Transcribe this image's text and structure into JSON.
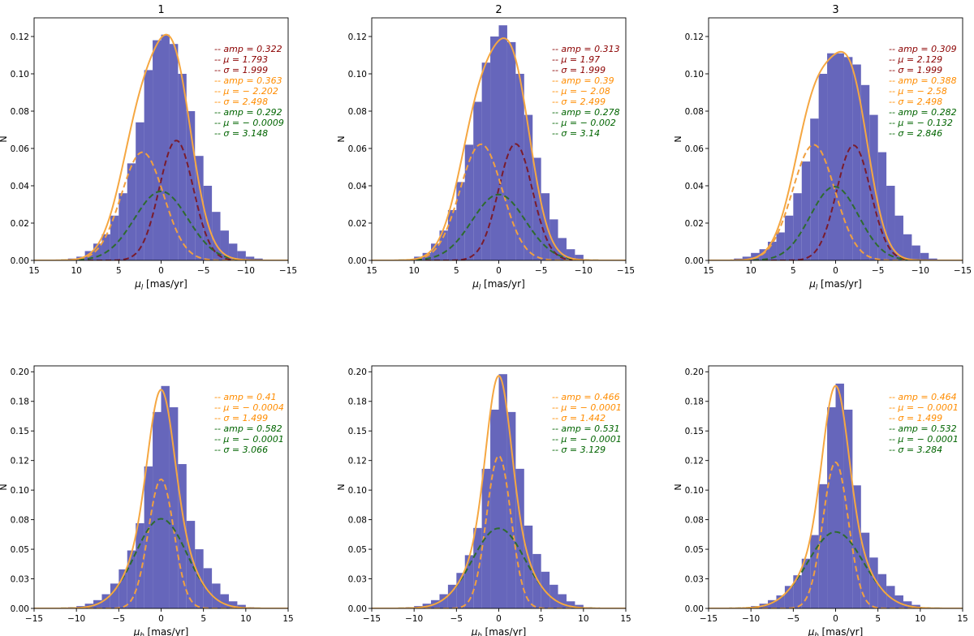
{
  "figure": {
    "ylabel": "N"
  },
  "colors": {
    "hist": "#6666bb",
    "total": "#f5a742",
    "comp_red": "#7a1c2c",
    "comp_orange": "#f0a040",
    "comp_green": "#2e6b2e",
    "label_red": "#8b0000",
    "label_orange": "#ff8c00",
    "label_green": "#006400"
  },
  "chart_data": [
    {
      "type": "bar",
      "title": "1",
      "xlabel_sym": "μ",
      "xlabel_sub": "l",
      "xlabel_rest": " [mas/yr]",
      "ylabel": "N",
      "xlim": [
        15,
        -15
      ],
      "ylim": [
        0,
        0.13
      ],
      "xticks": [
        15,
        10,
        5,
        0,
        -5,
        -10,
        -15
      ],
      "xtick_labels": [
        "15",
        "10",
        "5",
        "0",
        "−5",
        "−10",
        "−15"
      ],
      "yticks": [
        0,
        0.02,
        0.04,
        0.06,
        0.08,
        0.1,
        0.12
      ],
      "ytick_labels": [
        "0.00",
        "0.02",
        "0.04",
        "0.06",
        "0.08",
        "0.10",
        "0.12"
      ],
      "bin_edges": [
        11,
        10,
        9,
        8,
        7,
        6,
        5,
        4,
        3,
        2,
        1,
        0,
        -1,
        -2,
        -3,
        -4,
        -5,
        -6,
        -7,
        -8,
        -9,
        -10,
        -11,
        -12
      ],
      "bins": [
        0.001,
        0.002,
        0.005,
        0.009,
        0.014,
        0.024,
        0.036,
        0.052,
        0.074,
        0.102,
        0.118,
        0.121,
        0.116,
        0.1,
        0.08,
        0.056,
        0.04,
        0.026,
        0.016,
        0.009,
        0.005,
        0.002,
        0.001
      ],
      "components": [
        {
          "color": "red",
          "amp": 0.322,
          "mu": -1.793,
          "sigma": 1.999
        },
        {
          "color": "orange",
          "amp": 0.363,
          "mu": 2.202,
          "sigma": 2.498
        },
        {
          "color": "green",
          "amp": 0.292,
          "mu": 0.0009,
          "sigma": 3.148
        }
      ],
      "legend": [
        {
          "color": "red",
          "text": "-- amp = 0.322"
        },
        {
          "color": "red",
          "text": "-- μ = 1.793"
        },
        {
          "color": "red",
          "text": "-- σ = 1.999"
        },
        {
          "color": "orange",
          "text": "-- amp = 0.363"
        },
        {
          "color": "orange",
          "text": "-- μ = − 2.202"
        },
        {
          "color": "orange",
          "text": "-- σ = 2.498"
        },
        {
          "color": "green",
          "text": "-- amp = 0.292"
        },
        {
          "color": "green",
          "text": "-- μ = − 0.0009"
        },
        {
          "color": "green",
          "text": "-- σ = 3.148"
        }
      ]
    },
    {
      "type": "bar",
      "title": "2",
      "xlabel_sym": "μ",
      "xlabel_sub": "l",
      "xlabel_rest": " [mas/yr]",
      "ylabel": "N",
      "xlim": [
        15,
        -15
      ],
      "ylim": [
        0,
        0.13
      ],
      "xticks": [
        15,
        10,
        5,
        0,
        -5,
        -10,
        -15
      ],
      "xtick_labels": [
        "15",
        "10",
        "5",
        "0",
        "−5",
        "−10",
        "−15"
      ],
      "yticks": [
        0,
        0.02,
        0.04,
        0.06,
        0.08,
        0.1,
        0.12
      ],
      "ytick_labels": [
        "0.00",
        "0.02",
        "0.04",
        "0.06",
        "0.08",
        "0.10",
        "0.12"
      ],
      "bin_edges": [
        10,
        9,
        8,
        7,
        6,
        5,
        4,
        3,
        2,
        1,
        0,
        -1,
        -2,
        -3,
        -4,
        -5,
        -6,
        -7,
        -8,
        -9,
        -10
      ],
      "bins": [
        0.002,
        0.004,
        0.009,
        0.016,
        0.027,
        0.042,
        0.062,
        0.085,
        0.106,
        0.12,
        0.126,
        0.117,
        0.1,
        0.078,
        0.055,
        0.036,
        0.022,
        0.012,
        0.006,
        0.003
      ],
      "components": [
        {
          "color": "red",
          "amp": 0.313,
          "mu": -1.97,
          "sigma": 1.999
        },
        {
          "color": "orange",
          "amp": 0.39,
          "mu": 2.08,
          "sigma": 2.499
        },
        {
          "color": "green",
          "amp": 0.278,
          "mu": 0.002,
          "sigma": 3.14
        }
      ],
      "legend": [
        {
          "color": "red",
          "text": "-- amp = 0.313"
        },
        {
          "color": "red",
          "text": "-- μ = 1.97"
        },
        {
          "color": "red",
          "text": "-- σ = 1.999"
        },
        {
          "color": "orange",
          "text": "-- amp = 0.39"
        },
        {
          "color": "orange",
          "text": "-- μ = − 2.08"
        },
        {
          "color": "orange",
          "text": "-- σ = 2.499"
        },
        {
          "color": "green",
          "text": "-- amp = 0.278"
        },
        {
          "color": "green",
          "text": "-- μ = − 0.002"
        },
        {
          "color": "green",
          "text": "-- σ = 3.14"
        }
      ]
    },
    {
      "type": "bar",
      "title": "3",
      "xlabel_sym": "μ",
      "xlabel_sub": "l",
      "xlabel_rest": " [mas/yr]",
      "ylabel": "N",
      "xlim": [
        15,
        -15
      ],
      "ylim": [
        0,
        0.13
      ],
      "xticks": [
        15,
        10,
        5,
        0,
        -5,
        -10,
        -15
      ],
      "xtick_labels": [
        "15",
        "10",
        "5",
        "0",
        "−5",
        "−10",
        "−15"
      ],
      "yticks": [
        0,
        0.02,
        0.04,
        0.06,
        0.08,
        0.1,
        0.12
      ],
      "ytick_labels": [
        "0.00",
        "0.02",
        "0.04",
        "0.06",
        "0.08",
        "0.10",
        "0.12"
      ],
      "bin_edges": [
        12,
        11,
        10,
        9,
        8,
        7,
        6,
        5,
        4,
        3,
        2,
        1,
        0,
        -1,
        -2,
        -3,
        -4,
        -5,
        -6,
        -7,
        -8,
        -9,
        -10,
        -11,
        -12
      ],
      "bins": [
        0.001,
        0.002,
        0.004,
        0.006,
        0.01,
        0.015,
        0.024,
        0.036,
        0.053,
        0.076,
        0.1,
        0.111,
        0.111,
        0.109,
        0.105,
        0.094,
        0.078,
        0.058,
        0.04,
        0.024,
        0.014,
        0.008,
        0.004,
        0.001
      ],
      "components": [
        {
          "color": "red",
          "amp": 0.309,
          "mu": -2.129,
          "sigma": 1.999
        },
        {
          "color": "orange",
          "amp": 0.388,
          "mu": 2.58,
          "sigma": 2.498
        },
        {
          "color": "green",
          "amp": 0.282,
          "mu": 0.132,
          "sigma": 2.846
        }
      ],
      "legend": [
        {
          "color": "red",
          "text": "-- amp = 0.309"
        },
        {
          "color": "red",
          "text": "-- μ = 2.129"
        },
        {
          "color": "red",
          "text": "-- σ = 1.999"
        },
        {
          "color": "orange",
          "text": "-- amp = 0.388"
        },
        {
          "color": "orange",
          "text": "-- μ = − 2.58"
        },
        {
          "color": "orange",
          "text": "-- σ = 2.498"
        },
        {
          "color": "green",
          "text": "-- amp = 0.282"
        },
        {
          "color": "green",
          "text": "-- μ = − 0.132"
        },
        {
          "color": "green",
          "text": "-- σ = 2.846"
        }
      ]
    },
    {
      "type": "bar",
      "title": "",
      "xlabel_sym": "μ",
      "xlabel_sub": "b",
      "xlabel_rest": " [mas/yr]",
      "ylabel": "N",
      "xlim": [
        -15,
        15
      ],
      "ylim": [
        0,
        0.205
      ],
      "xticks": [
        -15,
        -10,
        -5,
        0,
        5,
        10,
        15
      ],
      "xtick_labels": [
        "−15",
        "−10",
        "−5",
        "0",
        "5",
        "10",
        "15"
      ],
      "yticks": [
        0,
        0.025,
        0.05,
        0.075,
        0.1,
        0.125,
        0.15,
        0.175,
        0.2
      ],
      "ytick_labels": [
        "0.00",
        "0.03",
        "0.05",
        "0.08",
        "0.10",
        "0.12",
        "0.15",
        "0.18",
        "0.20"
      ],
      "bin_edges": [
        -11,
        -10,
        -9,
        -8,
        -7,
        -6,
        -5,
        -4,
        -3,
        -2,
        -1,
        0,
        1,
        2,
        3,
        4,
        5,
        6,
        7,
        8,
        9,
        10,
        11
      ],
      "bins": [
        0.001,
        0.002,
        0.004,
        0.007,
        0.012,
        0.021,
        0.033,
        0.049,
        0.072,
        0.12,
        0.166,
        0.188,
        0.17,
        0.122,
        0.074,
        0.05,
        0.034,
        0.021,
        0.012,
        0.006,
        0.003,
        0.001
      ],
      "components": [
        {
          "color": "orange",
          "amp": 0.41,
          "mu": 0.0004,
          "sigma": 1.499
        },
        {
          "color": "green",
          "amp": 0.582,
          "mu": 0.0001,
          "sigma": 3.066
        }
      ],
      "legend": [
        {
          "color": "orange",
          "text": "-- amp = 0.41"
        },
        {
          "color": "orange",
          "text": "-- μ = − 0.0004"
        },
        {
          "color": "orange",
          "text": "-- σ = 1.499"
        },
        {
          "color": "green",
          "text": "-- amp = 0.582"
        },
        {
          "color": "green",
          "text": "-- μ = − 0.0001"
        },
        {
          "color": "green",
          "text": "-- σ = 3.066"
        }
      ]
    },
    {
      "type": "bar",
      "title": "",
      "xlabel_sym": "μ",
      "xlabel_sub": "b",
      "xlabel_rest": " [mas/yr]",
      "ylabel": "N",
      "xlim": [
        -15,
        15
      ],
      "ylim": [
        0,
        0.205
      ],
      "xticks": [
        -15,
        -10,
        -5,
        0,
        5,
        10,
        15
      ],
      "xtick_labels": [
        "−15",
        "−10",
        "−5",
        "0",
        "5",
        "10",
        "15"
      ],
      "yticks": [
        0,
        0.025,
        0.05,
        0.075,
        0.1,
        0.125,
        0.15,
        0.175,
        0.2
      ],
      "ytick_labels": [
        "0.00",
        "0.03",
        "0.05",
        "0.08",
        "0.10",
        "0.12",
        "0.15",
        "0.18",
        "0.20"
      ],
      "bin_edges": [
        -11,
        -10,
        -9,
        -8,
        -7,
        -6,
        -5,
        -4,
        -3,
        -2,
        -1,
        0,
        1,
        2,
        3,
        4,
        5,
        6,
        7,
        8,
        9,
        10,
        11
      ],
      "bins": [
        0.001,
        0.002,
        0.004,
        0.007,
        0.012,
        0.02,
        0.03,
        0.045,
        0.068,
        0.118,
        0.168,
        0.198,
        0.166,
        0.118,
        0.07,
        0.046,
        0.031,
        0.02,
        0.012,
        0.006,
        0.003,
        0.001
      ],
      "components": [
        {
          "color": "orange",
          "amp": 0.466,
          "mu": 0.0001,
          "sigma": 1.442
        },
        {
          "color": "green",
          "amp": 0.531,
          "mu": 0.0001,
          "sigma": 3.129
        }
      ],
      "legend": [
        {
          "color": "orange",
          "text": "-- amp = 0.466"
        },
        {
          "color": "orange",
          "text": "-- μ = − 0.0001"
        },
        {
          "color": "orange",
          "text": "-- σ = 1.442"
        },
        {
          "color": "green",
          "text": "-- amp = 0.531"
        },
        {
          "color": "green",
          "text": "-- μ = − 0.0001"
        },
        {
          "color": "green",
          "text": "-- σ = 3.129"
        }
      ]
    },
    {
      "type": "bar",
      "title": "",
      "xlabel_sym": "μ",
      "xlabel_sub": "b",
      "xlabel_rest": " [mas/yr]",
      "ylabel": "N",
      "xlim": [
        -15,
        15
      ],
      "ylim": [
        0,
        0.205
      ],
      "xticks": [
        -15,
        -10,
        -5,
        0,
        5,
        10,
        15
      ],
      "xtick_labels": [
        "−15",
        "−10",
        "−5",
        "0",
        "5",
        "10",
        "15"
      ],
      "yticks": [
        0,
        0.025,
        0.05,
        0.075,
        0.1,
        0.125,
        0.15,
        0.175,
        0.2
      ],
      "ytick_labels": [
        "0.00",
        "0.03",
        "0.05",
        "0.08",
        "0.10",
        "0.12",
        "0.15",
        "0.18",
        "0.20"
      ],
      "bin_edges": [
        -11,
        -10,
        -9,
        -8,
        -7,
        -6,
        -5,
        -4,
        -3,
        -2,
        -1,
        0,
        1,
        2,
        3,
        4,
        5,
        6,
        7,
        8,
        9,
        10,
        11
      ],
      "bins": [
        0.001,
        0.002,
        0.004,
        0.007,
        0.011,
        0.019,
        0.028,
        0.042,
        0.062,
        0.105,
        0.17,
        0.19,
        0.168,
        0.104,
        0.064,
        0.043,
        0.029,
        0.019,
        0.011,
        0.006,
        0.003,
        0.001
      ],
      "components": [
        {
          "color": "orange",
          "amp": 0.464,
          "mu": 0.0001,
          "sigma": 1.499
        },
        {
          "color": "green",
          "amp": 0.532,
          "mu": 0.0001,
          "sigma": 3.284
        }
      ],
      "legend": [
        {
          "color": "orange",
          "text": "-- amp = 0.464"
        },
        {
          "color": "orange",
          "text": "-- μ = − 0.0001"
        },
        {
          "color": "orange",
          "text": "-- σ = 1.499"
        },
        {
          "color": "green",
          "text": "-- amp = 0.532"
        },
        {
          "color": "green",
          "text": "-- μ = − 0.0001"
        },
        {
          "color": "green",
          "text": "-- σ = 3.284"
        }
      ]
    }
  ]
}
